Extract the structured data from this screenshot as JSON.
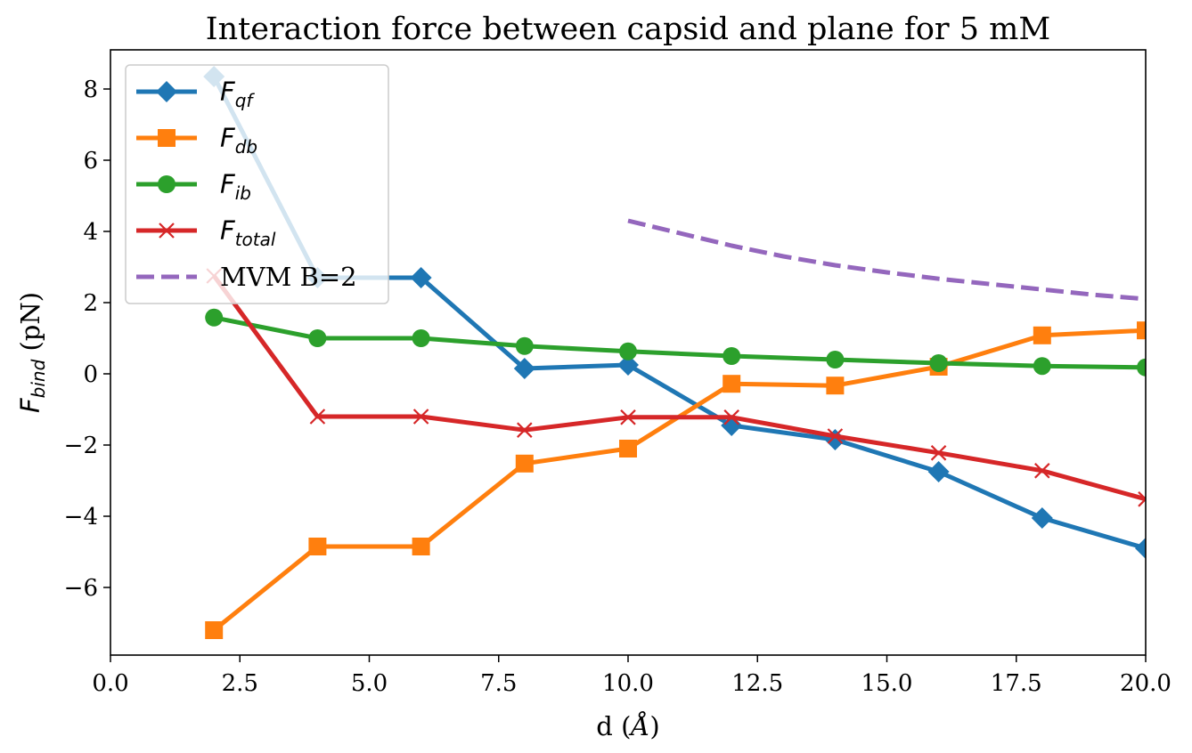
{
  "chart_data": {
    "type": "line",
    "title": "Interaction force between capsid and plane for 5 mM",
    "xlabel": {
      "main": "d (",
      "symbol": "Å",
      "close": ")"
    },
    "ylabel": {
      "main": "F",
      "sub": "bind",
      "unit": " (pN)"
    },
    "xlim": [
      0,
      20
    ],
    "ylim": [
      -7.9,
      9.1
    ],
    "xticks": [
      0,
      2.5,
      5,
      7.5,
      10,
      12.5,
      15,
      17.5,
      20
    ],
    "xtick_labels": [
      "0.0",
      "2.5",
      "5.0",
      "7.5",
      "10.0",
      "12.5",
      "15.0",
      "17.5",
      "20.0"
    ],
    "yticks": [
      -6,
      -4,
      -2,
      0,
      2,
      4,
      6,
      8
    ],
    "ytick_labels": [
      "−6",
      "−4",
      "−2",
      "0",
      "2",
      "4",
      "6",
      "8"
    ],
    "grid": false,
    "legend_position": "top-left",
    "series": [
      {
        "name": "F",
        "name_sub": "qf",
        "color": "#1f77b4",
        "marker": "diamond",
        "x": [
          2,
          4,
          6,
          8,
          10,
          12,
          14,
          16,
          18,
          20
        ],
        "y": [
          8.35,
          2.7,
          2.7,
          0.15,
          0.25,
          -1.45,
          -1.85,
          -2.75,
          -4.05,
          -4.9
        ]
      },
      {
        "name": "F",
        "name_sub": "db",
        "color": "#ff7f0e",
        "marker": "square",
        "x": [
          2,
          4,
          6,
          8,
          10,
          12,
          14,
          16,
          18,
          20
        ],
        "y": [
          -7.2,
          -4.85,
          -4.85,
          -2.52,
          -2.1,
          -0.28,
          -0.33,
          0.2,
          1.08,
          1.22
        ]
      },
      {
        "name": "F",
        "name_sub": "ib",
        "color": "#2ca02c",
        "marker": "circle",
        "x": [
          2,
          4,
          6,
          8,
          10,
          12,
          14,
          16,
          18,
          20
        ],
        "y": [
          1.58,
          1.0,
          1.0,
          0.78,
          0.63,
          0.5,
          0.4,
          0.3,
          0.22,
          0.18
        ]
      },
      {
        "name": "F",
        "name_sub": "total",
        "color": "#d62728",
        "marker": "x",
        "x": [
          2,
          4,
          6,
          8,
          10,
          12,
          14,
          16,
          18,
          20
        ],
        "y": [
          2.75,
          -1.2,
          -1.2,
          -1.58,
          -1.22,
          -1.22,
          -1.75,
          -2.22,
          -2.72,
          -3.52
        ]
      },
      {
        "name": "MVM B=2",
        "color": "#9467bd",
        "marker": "none",
        "dashed": true,
        "x": [
          10,
          11,
          12,
          13,
          14,
          15,
          16,
          17,
          18,
          19,
          20
        ],
        "y": [
          4.3,
          3.95,
          3.6,
          3.3,
          3.05,
          2.85,
          2.67,
          2.52,
          2.37,
          2.22,
          2.1
        ]
      }
    ]
  }
}
